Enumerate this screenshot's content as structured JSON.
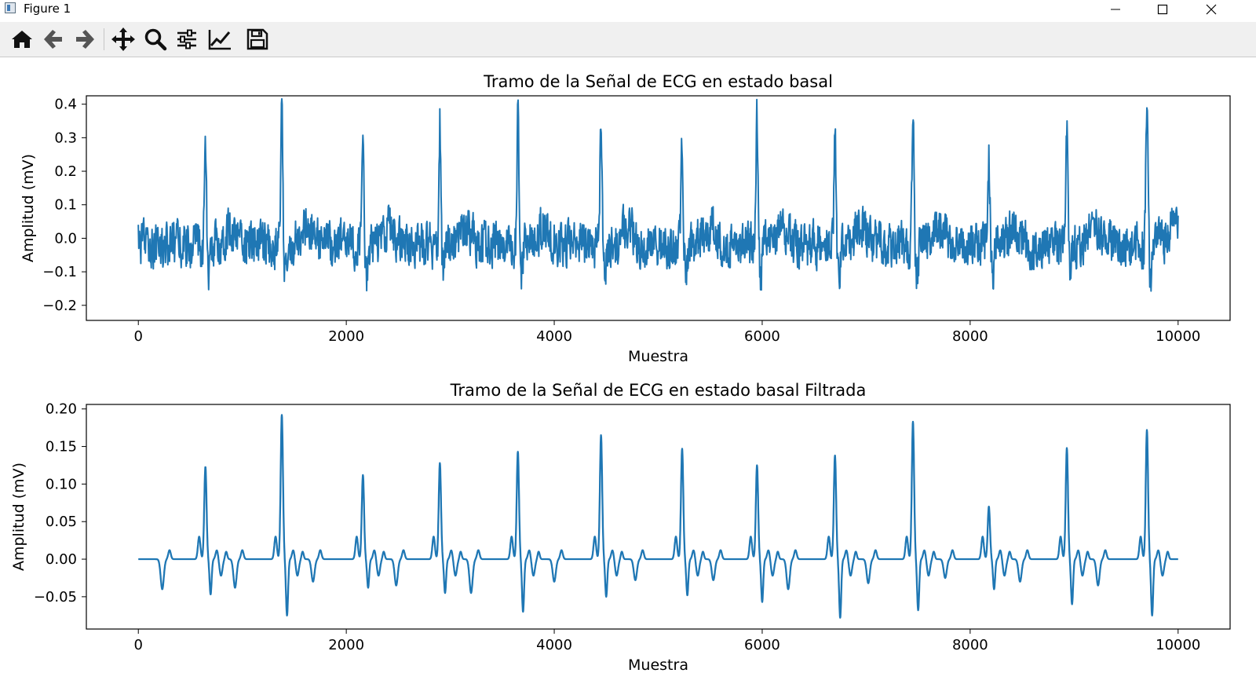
{
  "window": {
    "title": "Figure 1"
  },
  "toolbar": {
    "tools": [
      {
        "name": "home-icon",
        "tooltip": "Reset original view"
      },
      {
        "name": "back-icon",
        "tooltip": "Back to previous view"
      },
      {
        "name": "forward-icon",
        "tooltip": "Forward to next view"
      },
      {
        "name": "pan-icon",
        "tooltip": "Pan axes"
      },
      {
        "name": "zoom-icon",
        "tooltip": "Zoom to rectangle"
      },
      {
        "name": "configure-subplots-icon",
        "tooltip": "Configure subplots"
      },
      {
        "name": "edit-axis-icon",
        "tooltip": "Edit axis, curve and image parameters"
      },
      {
        "name": "save-icon",
        "tooltip": "Save the figure"
      }
    ]
  },
  "colors": {
    "line": "#1f77b4",
    "toolbar_bg": "#f0f0f0"
  },
  "chart_data": [
    {
      "type": "line",
      "title": "Tramo de la Señal de ECG en estado basal",
      "xlabel": "Muestra",
      "ylabel": "Amplitud (mV)",
      "xlim": [
        -500,
        10500
      ],
      "ylim": [
        -0.245,
        0.425
      ],
      "xticks": [
        0,
        2000,
        4000,
        6000,
        8000,
        10000
      ],
      "xtick_labels": [
        "0",
        "2000",
        "4000",
        "6000",
        "8000",
        "10000"
      ],
      "yticks": [
        -0.2,
        -0.1,
        0.0,
        0.1,
        0.2,
        0.3,
        0.4
      ],
      "ytick_labels": [
        "−0.2",
        "−0.1",
        "0.0",
        "0.1",
        "0.2",
        "0.3",
        "0.4"
      ],
      "grid": false,
      "series": [
        {
          "style": "noisy",
          "x_range": [
            0,
            10000
          ],
          "noise_amplitude_mV": 0.06,
          "baseline_mV": -0.02,
          "r_peaks": [
            {
              "x": 645,
              "y": 0.28
            },
            {
              "x": 1380,
              "y": 0.37
            },
            {
              "x": 2160,
              "y": 0.3
            },
            {
              "x": 2900,
              "y": 0.34
            },
            {
              "x": 3650,
              "y": 0.37
            },
            {
              "x": 4450,
              "y": 0.36
            },
            {
              "x": 5230,
              "y": 0.3
            },
            {
              "x": 5950,
              "y": 0.36
            },
            {
              "x": 6700,
              "y": 0.37
            },
            {
              "x": 7450,
              "y": 0.38
            },
            {
              "x": 8180,
              "y": 0.24
            },
            {
              "x": 8930,
              "y": 0.3
            },
            {
              "x": 9700,
              "y": 0.4
            }
          ]
        }
      ]
    },
    {
      "type": "line",
      "title": "Tramo de la Señal de ECG en estado basal Filtrada",
      "xlabel": "Muestra",
      "ylabel": "Amplitud (mV)",
      "xlim": [
        -500,
        10500
      ],
      "ylim": [
        -0.093,
        0.206
      ],
      "xticks": [
        0,
        2000,
        4000,
        6000,
        8000,
        10000
      ],
      "xtick_labels": [
        "0",
        "2000",
        "4000",
        "6000",
        "8000",
        "10000"
      ],
      "yticks": [
        -0.05,
        0.0,
        0.05,
        0.1,
        0.15,
        0.2
      ],
      "ytick_labels": [
        "−0.05",
        "0.00",
        "0.05",
        "0.10",
        "0.15",
        "0.20"
      ],
      "grid": false,
      "series": [
        {
          "style": "smooth",
          "x_range": [
            0,
            10000
          ],
          "beats": [
            {
              "x": 645,
              "r": 0.123,
              "s": -0.047
            },
            {
              "x": 1380,
              "r": 0.192,
              "s": -0.075
            },
            {
              "x": 2160,
              "r": 0.112,
              "s": -0.038
            },
            {
              "x": 2900,
              "r": 0.128,
              "s": -0.045
            },
            {
              "x": 3650,
              "r": 0.143,
              "s": -0.07
            },
            {
              "x": 4450,
              "r": 0.165,
              "s": -0.05
            },
            {
              "x": 5230,
              "r": 0.147,
              "s": -0.048
            },
            {
              "x": 5950,
              "r": 0.125,
              "s": -0.057
            },
            {
              "x": 6700,
              "r": 0.138,
              "s": -0.078
            },
            {
              "x": 7450,
              "r": 0.183,
              "s": -0.068
            },
            {
              "x": 8180,
              "r": 0.07,
              "s": -0.04
            },
            {
              "x": 8930,
              "r": 0.148,
              "s": -0.06
            },
            {
              "x": 9700,
              "r": 0.172,
              "s": -0.075
            }
          ],
          "small_dips": [
            {
              "x": 230,
              "y": -0.04
            },
            {
              "x": 930,
              "y": -0.038
            },
            {
              "x": 1680,
              "y": -0.03
            },
            {
              "x": 2480,
              "y": -0.035
            },
            {
              "x": 3200,
              "y": -0.045
            },
            {
              "x": 4000,
              "y": -0.03
            },
            {
              "x": 4780,
              "y": -0.028
            },
            {
              "x": 5530,
              "y": -0.028
            },
            {
              "x": 6250,
              "y": -0.04
            },
            {
              "x": 7020,
              "y": -0.032
            },
            {
              "x": 7760,
              "y": -0.025
            },
            {
              "x": 8480,
              "y": -0.03
            },
            {
              "x": 9230,
              "y": -0.035
            }
          ]
        }
      ]
    }
  ]
}
